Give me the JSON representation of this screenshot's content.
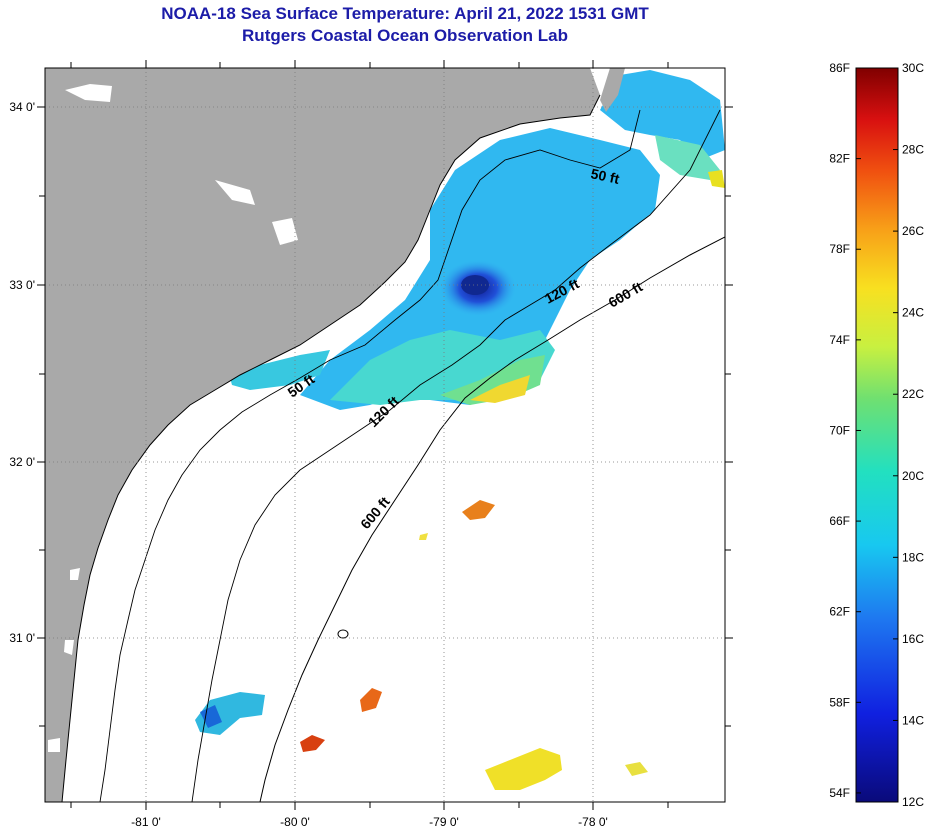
{
  "title": {
    "line1": "NOAA-18 Sea Surface Temperature:  April 21, 2022 1531 GMT",
    "line2": "Rutgers Coastal Ocean Observation Lab"
  },
  "map": {
    "lon_labels": [
      "-81 0'",
      "-80 0'",
      "-79 0'",
      "-78 0'"
    ],
    "lat_labels": [
      "34 0'",
      "33 0'",
      "32 0'",
      "31 0'"
    ],
    "contours": [
      {
        "label": "50 ft",
        "depth_ft": 50
      },
      {
        "label": "50 ft",
        "depth_ft": 50
      },
      {
        "label": "120 ft",
        "depth_ft": 120
      },
      {
        "label": "120 ft",
        "depth_ft": 120
      },
      {
        "label": "600 ft",
        "depth_ft": 600
      },
      {
        "label": "600 ft",
        "depth_ft": 600
      }
    ]
  },
  "colorbar": {
    "fahrenheit_labels": [
      "86F",
      "82F",
      "78F",
      "74F",
      "70F",
      "66F",
      "62F",
      "58F",
      "54F"
    ],
    "celsius_labels": [
      "30C",
      "28C",
      "26C",
      "24C",
      "22C",
      "20C",
      "18C",
      "16C",
      "14C",
      "12C"
    ],
    "range_c": [
      12,
      30
    ],
    "range_f": [
      54,
      86
    ],
    "colors": {
      "land": "#a9a9a9",
      "cold": "#0a0a8c",
      "mid": "#22dcc4",
      "warm": "#f0e030",
      "hot": "#800000"
    }
  }
}
